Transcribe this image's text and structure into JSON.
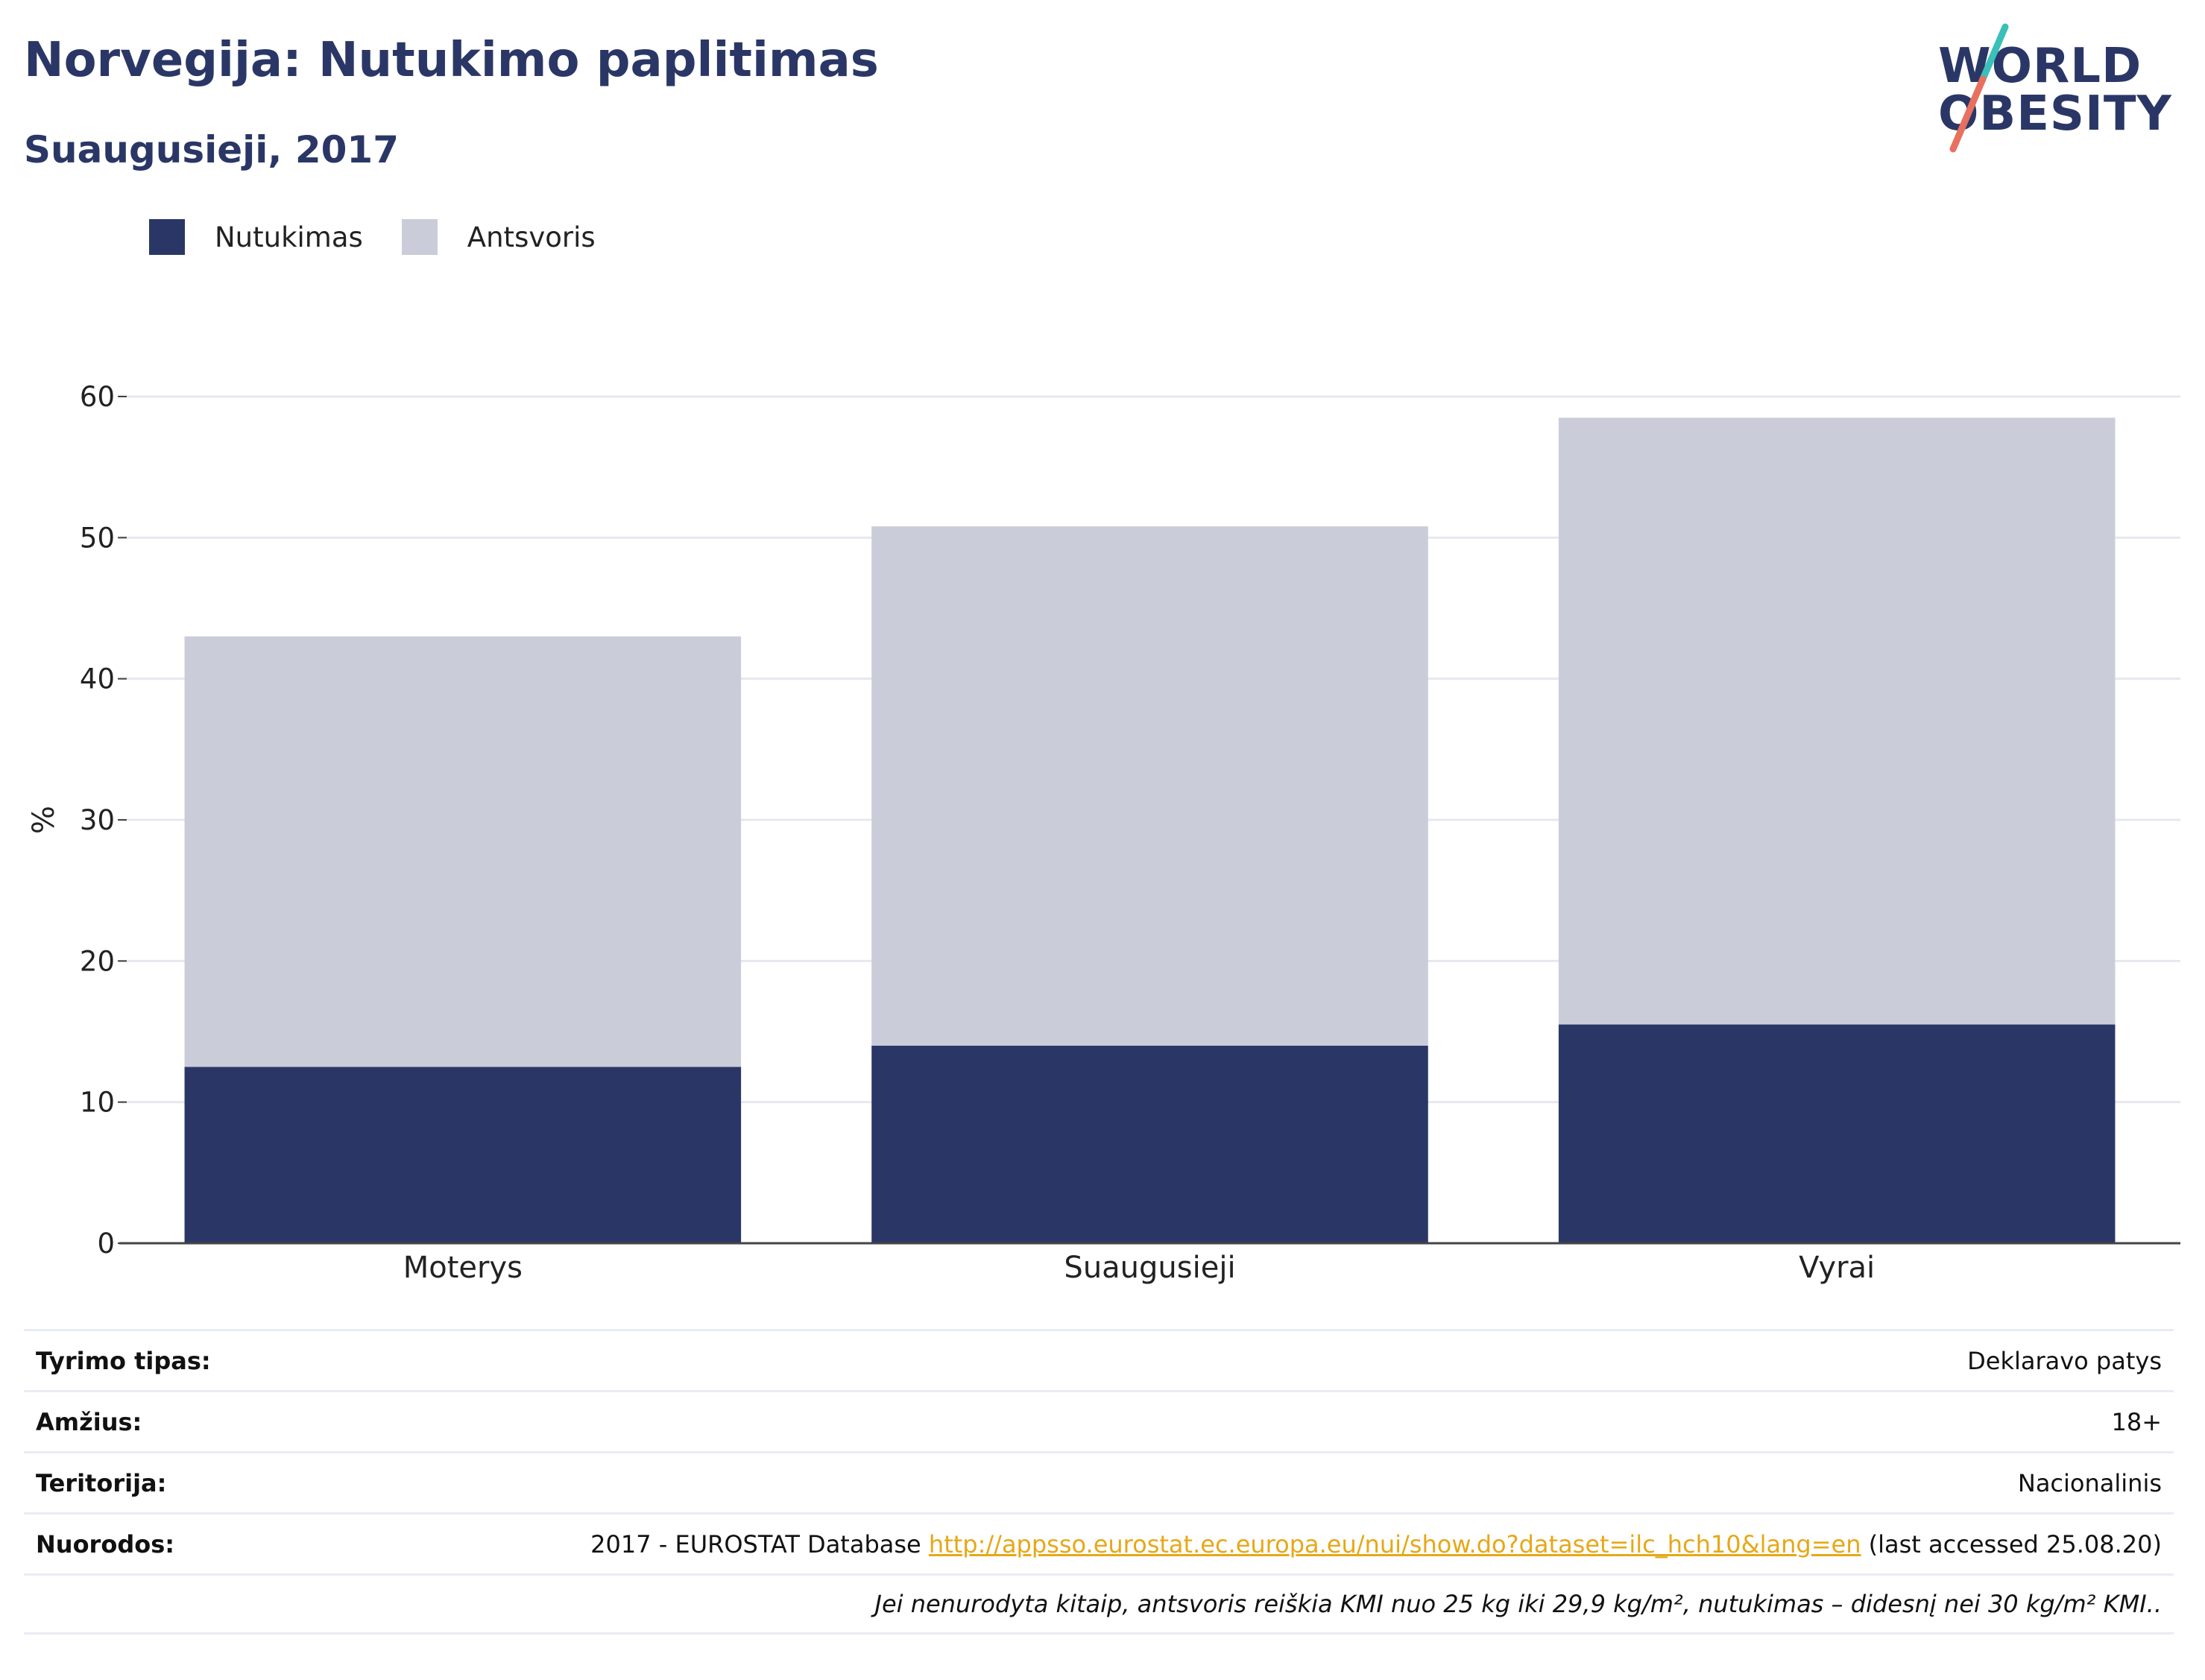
{
  "header": {
    "title": "Norvegija: Nutukimo paplitimas",
    "subtitle": "Suaugusieji, 2017"
  },
  "logo": {
    "line1": "WORLD",
    "line2": "OBESITY",
    "colors": {
      "text": "#2a3766",
      "slash_top": "#3bbfb9",
      "slash_bottom": "#e8705e"
    }
  },
  "colors": {
    "obesity": "#2a3766",
    "overweight": "#cacdd9",
    "grid": "#e6e8ef",
    "axis": "#444444",
    "link": "#e6a817"
  },
  "chart_data": {
    "type": "bar",
    "stacked": true,
    "categories": [
      "Moterys",
      "Suaugusieji",
      "Vyrai"
    ],
    "series": [
      {
        "name": "Nutukimas",
        "values": [
          12.5,
          14.0,
          15.5
        ],
        "color": "#2a3766"
      },
      {
        "name": "Antsvoris",
        "values": [
          30.5,
          36.8,
          43.0
        ],
        "color": "#cacdd9"
      }
    ],
    "ylabel": "%",
    "ylim": [
      0,
      60
    ],
    "yticks": [
      0,
      10,
      20,
      30,
      40,
      50,
      60
    ],
    "grid": true,
    "legend_position": "top-left"
  },
  "info": {
    "rows": [
      {
        "key": "Tyrimo tipas:",
        "value": "Deklaravo patys"
      },
      {
        "key": "Amžius:",
        "value": "18+"
      },
      {
        "key": "Teritorija:",
        "value": "Nacionalinis"
      }
    ],
    "references": {
      "key": "Nuorodos:",
      "prefix": "2017 - EUROSTAT Database ",
      "link": "http://appsso.eurostat.ec.europa.eu/nui/show.do?dataset=ilc_hch10&lang=en",
      "suffix": " (last accessed 25.08.20)"
    },
    "note": "Jei nenurodyta kitaip, antsvoris reiškia KMI nuo 25 kg iki 29,9 kg/m², nutukimas – didesnį nei 30 kg/m² KMI.."
  }
}
